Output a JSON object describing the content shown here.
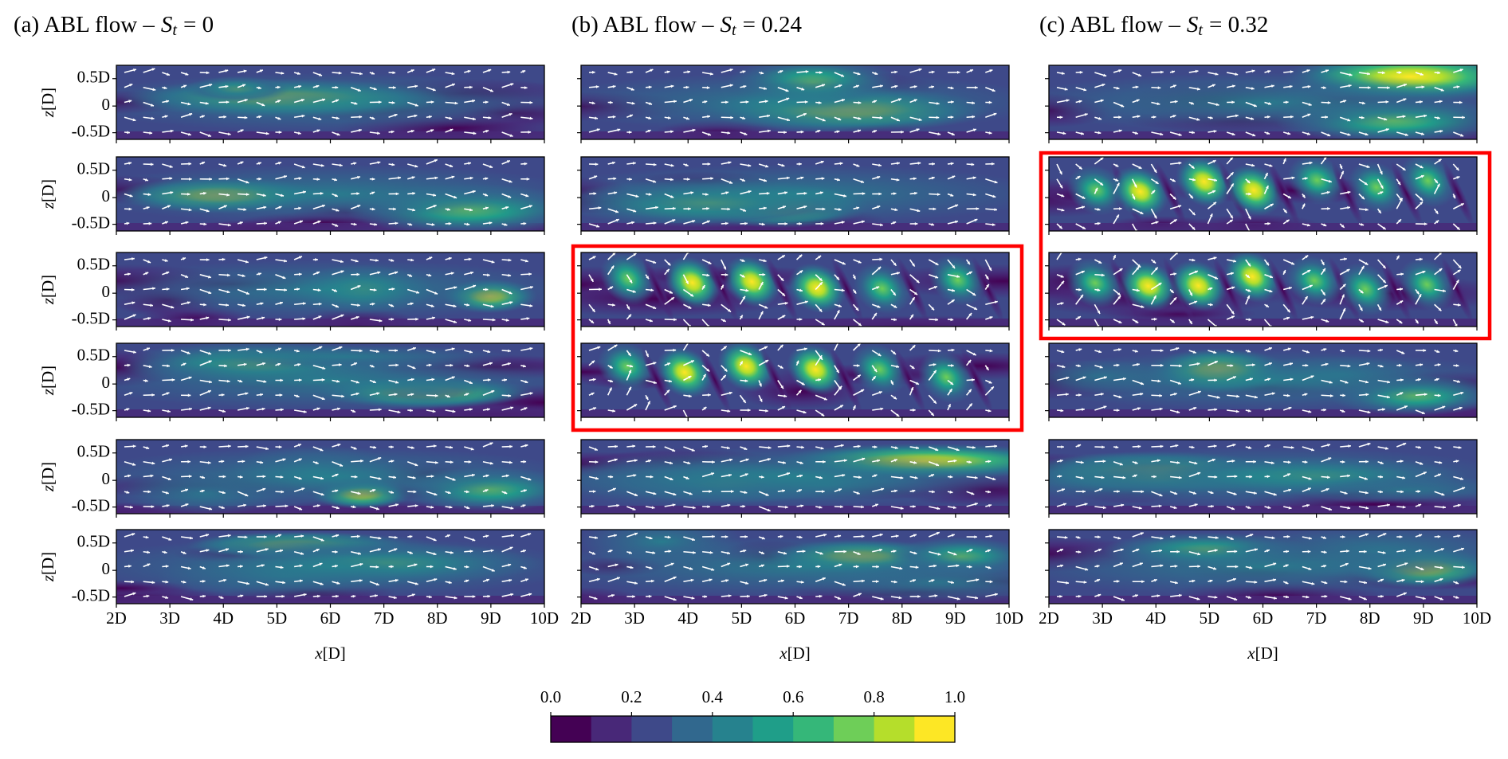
{
  "panels": [
    {
      "title": {
        "prefix": "(a) ABL flow –",
        "symbol": "S",
        "subscript": "t",
        "equals": "= 0"
      }
    },
    {
      "title": {
        "prefix": "(b) ABL flow –",
        "symbol": "S",
        "subscript": "t",
        "equals": "= 0.24"
      }
    },
    {
      "title": {
        "prefix": "(c) ABL flow –",
        "symbol": "S",
        "subscript": "t",
        "equals": "= 0.32"
      }
    }
  ],
  "x_axis": {
    "ticks": [
      "2D",
      "3D",
      "4D",
      "5D",
      "6D",
      "7D",
      "8D",
      "9D",
      "10D"
    ],
    "label_var": "x",
    "label_unit": "[D]"
  },
  "z_axis": {
    "ticks": [
      "0.5D",
      "0",
      "-0.5D"
    ],
    "label_var": "z",
    "label_unit": "[D]"
  },
  "colorbar": {
    "ticks": [
      {
        "value": 0,
        "label": "0.0"
      },
      {
        "value": 0.2,
        "label": "0.2"
      },
      {
        "value": 0.4,
        "label": "0.4"
      },
      {
        "value": 0.6,
        "label": "0.6"
      },
      {
        "value": 0.8,
        "label": "0.8"
      },
      {
        "value": 1,
        "label": "1.0"
      }
    ],
    "lim": [
      0,
      1
    ],
    "colors": [
      "#440154",
      "#482878",
      "#3e4989",
      "#31688e",
      "#26828e",
      "#1f9e89",
      "#35b779",
      "#6ece58",
      "#b5de2b",
      "#fde725"
    ]
  }
}
